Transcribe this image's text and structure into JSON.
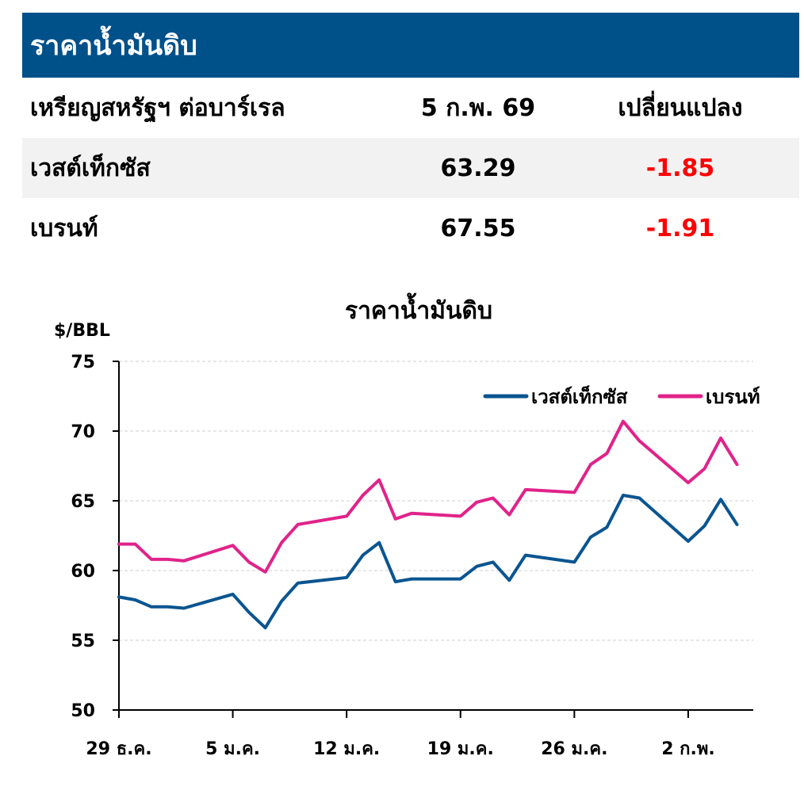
{
  "table": {
    "title": "ราคาน้ำมันดิบ",
    "header": {
      "col1": "เหรียญสหรัฐฯ ต่อบาร์เรล",
      "col2": "5 ก.พ. 69",
      "col3": "เปลี่ยนแปลง"
    },
    "rows": [
      {
        "name": "เวสต์เท็กซัส",
        "price": "63.29",
        "change": "-1.85"
      },
      {
        "name": "เบรนท์",
        "price": "67.55",
        "change": "-1.91"
      }
    ],
    "negative_color": "#ff0000",
    "header_bg": "#00508a"
  },
  "chart_data": {
    "type": "line",
    "title": "ราคาน้ำมันดิบ",
    "ylabel": "$/BBL",
    "ylim": [
      50,
      75
    ],
    "yticks": [
      "50",
      "55",
      "60",
      "65",
      "70",
      "75"
    ],
    "xlabels": [
      "29 ธ.ค.",
      "5 ม.ค.",
      "12 ม.ค.",
      "19 ม.ค.",
      "26 ม.ค.",
      "2 ก.พ."
    ],
    "x": [
      "2025-12-29",
      "2025-12-30",
      "2025-12-31",
      "2026-01-01",
      "2026-01-02",
      "2026-01-05",
      "2026-01-06",
      "2026-01-07",
      "2026-01-08",
      "2026-01-09",
      "2026-01-12",
      "2026-01-13",
      "2026-01-14",
      "2026-01-15",
      "2026-01-16",
      "2026-01-19",
      "2026-01-20",
      "2026-01-21",
      "2026-01-22",
      "2026-01-23",
      "2026-01-26",
      "2026-01-27",
      "2026-01-28",
      "2026-01-29",
      "2026-01-30",
      "2026-02-02",
      "2026-02-03",
      "2026-02-04",
      "2026-02-05"
    ],
    "grid": true,
    "legend_position": "top-right",
    "series": [
      {
        "name": "เวสต์เท็กซัส",
        "color": "#0a5590",
        "values": [
          58.1,
          57.9,
          57.4,
          57.4,
          57.3,
          58.3,
          57.0,
          55.9,
          57.8,
          59.1,
          59.5,
          61.1,
          62.0,
          59.2,
          59.4,
          59.4,
          60.3,
          60.6,
          59.3,
          61.1,
          60.6,
          62.4,
          63.1,
          65.4,
          65.2,
          62.1,
          63.2,
          65.1,
          63.3
        ]
      },
      {
        "name": "เบรนท์",
        "color": "#e0238a",
        "values": [
          61.9,
          61.9,
          60.8,
          60.8,
          60.7,
          61.8,
          60.6,
          59.9,
          62.0,
          63.3,
          63.9,
          65.4,
          66.5,
          63.7,
          64.1,
          63.9,
          64.9,
          65.2,
          64.0,
          65.8,
          65.6,
          67.6,
          68.4,
          70.7,
          69.3,
          66.3,
          67.3,
          69.5,
          67.6
        ]
      }
    ]
  }
}
